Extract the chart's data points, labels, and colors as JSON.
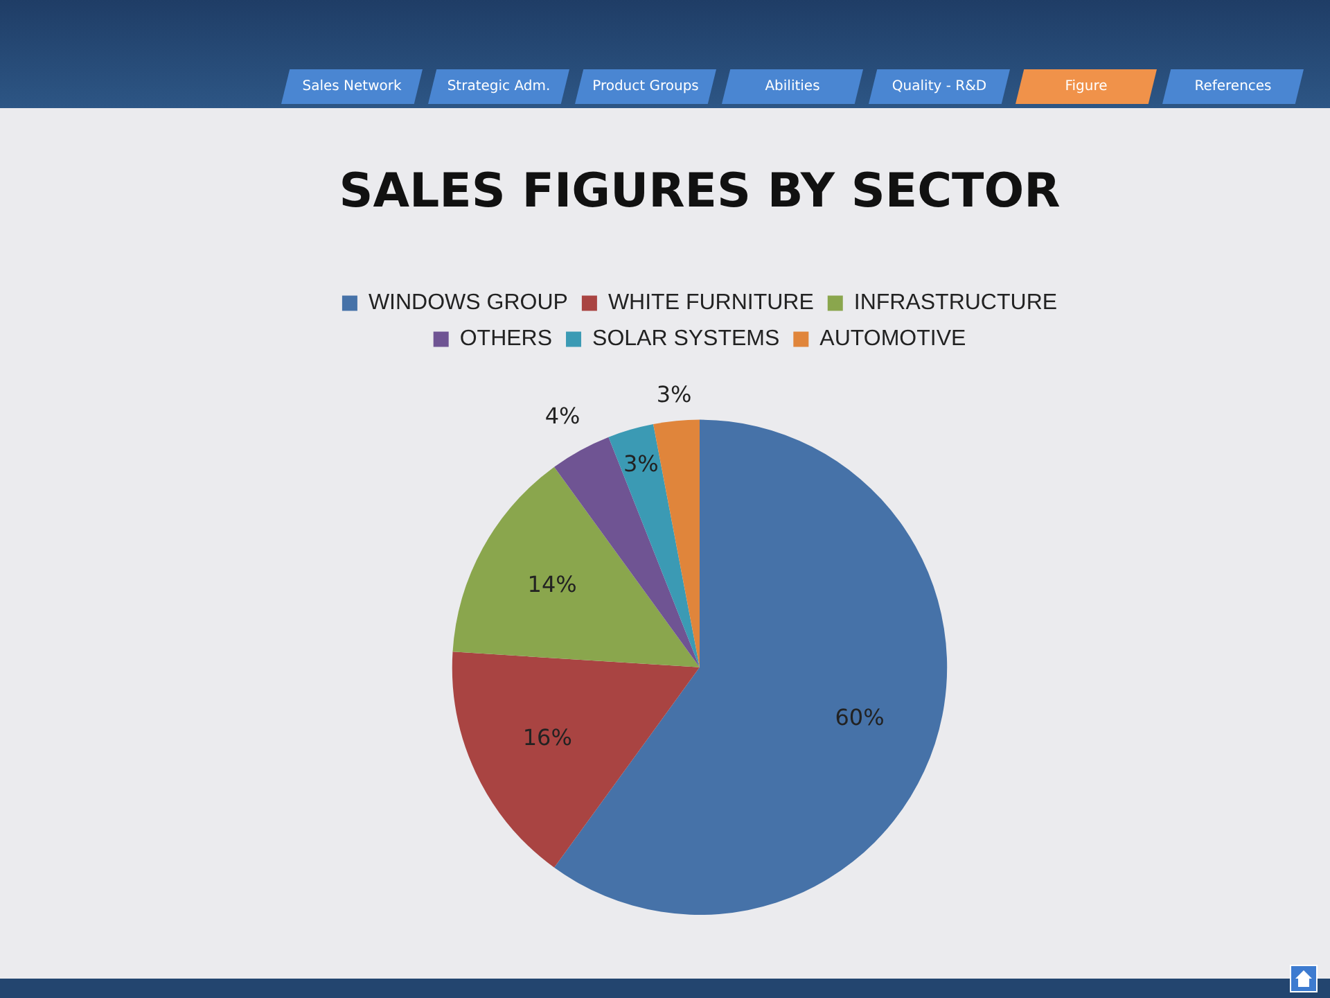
{
  "chart_data": {
    "type": "pie",
    "title": "SALES FIGURES BY SECTOR",
    "categories": [
      "WINDOWS GROUP",
      "WHITE FURNITURE",
      "INFRASTRUCTURE",
      "OTHERS",
      "SOLAR SYSTEMS",
      "AUTOMOTIVE"
    ],
    "values": [
      60,
      16,
      14,
      4,
      3,
      3
    ],
    "value_labels": [
      "60%",
      "16%",
      "14%",
      "4%",
      "3%",
      "3%"
    ],
    "colors": [
      "#4672a8",
      "#a94442",
      "#8aa64d",
      "#6f5493",
      "#3b9ab4",
      "#e0853b"
    ],
    "legend": "top",
    "annotations": [
      "Sales Network",
      "Strategic Adm.",
      "Product Groups",
      "Abilities",
      "Quality - R&D",
      "Figure",
      "References"
    ]
  }
}
